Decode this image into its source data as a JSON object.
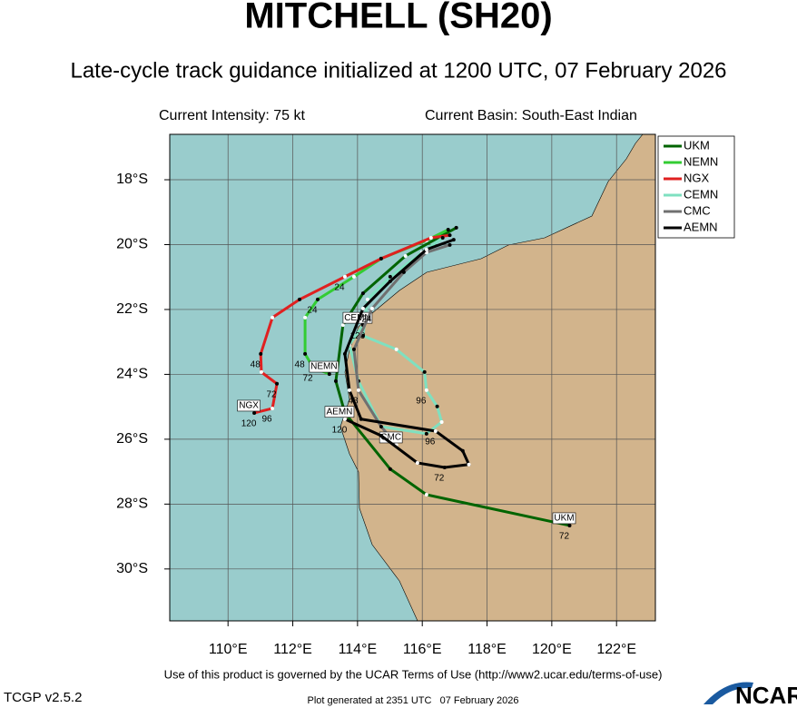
{
  "chart_data": {
    "type": "track",
    "title": "MITCHELL (SH20)",
    "subtitle": "Late-cycle track guidance initialized at 1200 UTC, 07 February 2026",
    "intensity": "Current Intensity: 75 kt",
    "basin": "Current Basin: South-East Indian",
    "xlim": [
      108.2,
      123.2
    ],
    "ylim": [
      -31.6,
      -16.6
    ],
    "xticks": [
      {
        "value": 110,
        "label": "110°E"
      },
      {
        "value": 112,
        "label": "112°E"
      },
      {
        "value": 114,
        "label": "114°E"
      },
      {
        "value": 116,
        "label": "116°E"
      },
      {
        "value": 118,
        "label": "118°E"
      },
      {
        "value": 120,
        "label": "120°E"
      },
      {
        "value": 122,
        "label": "122°E"
      }
    ],
    "yticks": [
      {
        "value": -18,
        "label": "18°S"
      },
      {
        "value": -20,
        "label": "20°S"
      },
      {
        "value": -22,
        "label": "22°S"
      },
      {
        "value": -24,
        "label": "24°S"
      },
      {
        "value": -26,
        "label": "26°S"
      },
      {
        "value": -28,
        "label": "28°S"
      },
      {
        "value": -30,
        "label": "30°S"
      }
    ],
    "grid": true,
    "legend": "top-right",
    "series": [
      {
        "name": "UKM",
        "color": "#006400",
        "x": [
          117.05,
          115.48,
          114.17,
          113.55,
          113.33,
          113.61,
          115.01,
          116.13,
          120.55
        ],
        "values": [
          -19.48,
          -20.35,
          -21.5,
          -22.48,
          -24.21,
          -25.19,
          -26.92,
          -27.71,
          -28.66
        ],
        "point_labels": [
          null,
          null,
          null,
          null,
          null,
          null,
          null,
          null,
          72
        ]
      },
      {
        "name": "NEMN",
        "color": "#33cc33",
        "x": [
          116.8,
          116.13,
          114.73,
          113.89,
          112.77,
          112.38,
          112.38,
          112.63,
          113.13
        ],
        "values": [
          -19.54,
          -19.87,
          -20.43,
          -20.99,
          -21.69,
          -22.25,
          -23.37,
          -23.79,
          -23.99
        ],
        "point_labels": [
          null,
          null,
          null,
          null,
          24,
          null,
          48,
          72,
          null
        ]
      },
      {
        "name": "NGX",
        "color": "#e02020",
        "x": [
          116.85,
          116.27,
          114.73,
          113.61,
          112.21,
          111.37,
          111.01,
          111.03,
          111.51,
          111.37,
          110.81
        ],
        "values": [
          -19.71,
          -19.79,
          -20.43,
          -20.99,
          -21.69,
          -22.25,
          -23.37,
          -23.93,
          -24.29,
          -25.05,
          -25.19
        ],
        "point_labels": [
          null,
          null,
          null,
          24,
          null,
          null,
          48,
          null,
          72,
          96,
          120
        ]
      },
      {
        "name": "CEMN",
        "color": "#7fe0c0",
        "x": [
          116.63,
          115.99,
          115.01,
          114.31,
          114.17,
          115.2,
          116.07,
          116.13,
          116.46,
          116.6,
          116.13,
          114.73,
          114.03,
          113.75,
          114.17
        ],
        "values": [
          -19.79,
          -20.24,
          -20.99,
          -21.69,
          -22.81,
          -23.23,
          -23.93,
          -24.49,
          -24.99,
          -25.47,
          -25.83,
          -25.61,
          -24.21,
          -23.09,
          -22.48
        ],
        "point_labels": [
          null,
          null,
          null,
          null,
          null,
          null,
          null,
          96,
          null,
          null,
          null,
          null,
          null,
          null,
          120
        ]
      },
      {
        "name": "CMC",
        "color": "#707070",
        "x": [
          116.85,
          116.13,
          115.43,
          114.45,
          113.89,
          114.03,
          114.73,
          115.2
        ],
        "values": [
          -20.01,
          -20.24,
          -20.85,
          -21.97,
          -23.23,
          -24.49,
          -25.61,
          -26.17
        ],
        "point_labels": [
          null,
          null,
          null,
          24,
          null,
          48,
          null,
          null
        ]
      },
      {
        "name": "AEMN",
        "color": "#000000",
        "x": [
          116.97,
          116.13,
          115.01,
          114.17,
          113.61,
          113.75,
          114.11,
          116.41,
          117.25,
          117.44,
          116.69,
          115.85,
          114.73,
          113.61
        ],
        "values": [
          -19.85,
          -20.15,
          -21.13,
          -21.97,
          -23.37,
          -24.49,
          -25.38,
          -25.75,
          -26.36,
          -26.78,
          -26.87,
          -26.73,
          -25.89,
          -25.38
        ],
        "point_labels": [
          null,
          null,
          null,
          null,
          null,
          null,
          null,
          96,
          null,
          null,
          72,
          null,
          null,
          120
        ]
      }
    ],
    "terms": "Use of this product is governed by the UCAR Terms of Use (http://www2.ucar.edu/terms-of-use)",
    "version": "TCGP v2.5.2",
    "generated": "Plot generated at 2351 UTC   07 February 2026",
    "logo": "NCAR"
  }
}
